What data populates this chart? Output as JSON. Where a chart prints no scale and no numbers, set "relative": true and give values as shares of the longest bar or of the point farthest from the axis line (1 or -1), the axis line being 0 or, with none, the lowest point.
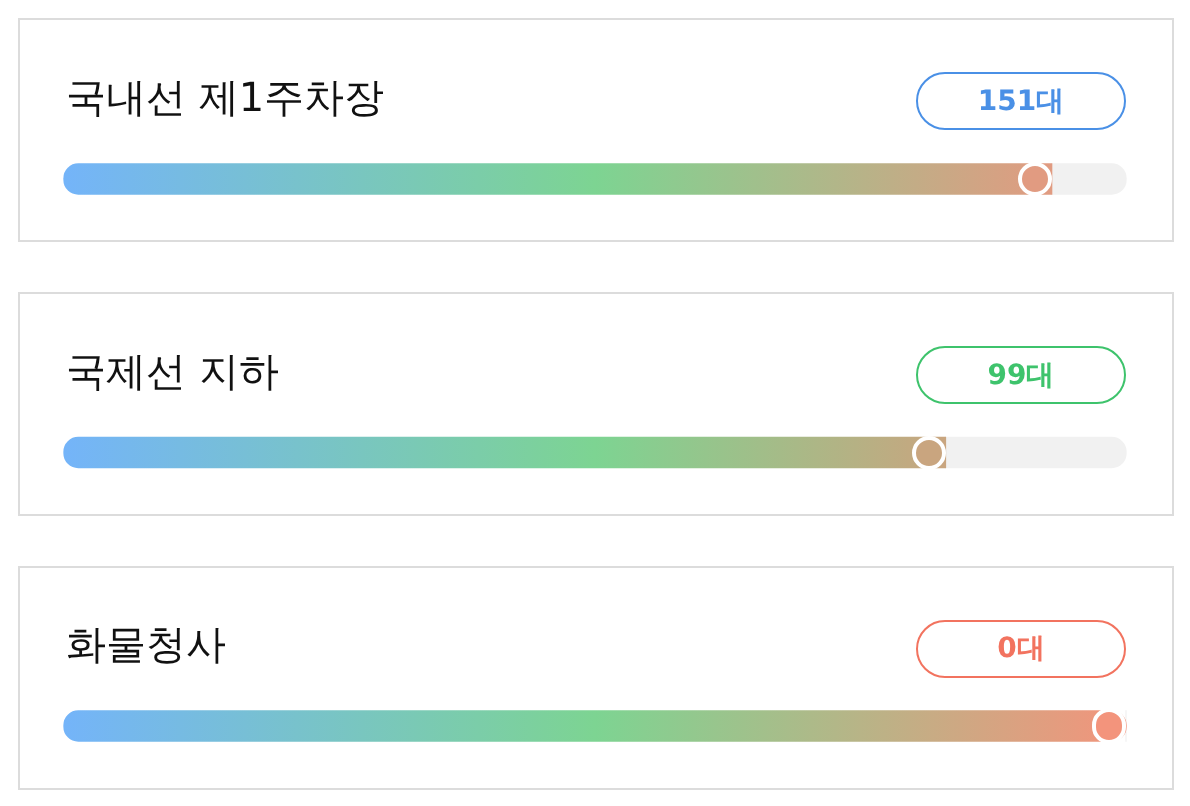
{
  "chart_data": {
    "type": "bar",
    "orientation": "horizontal",
    "relative": true,
    "stacked": true,
    "categories": [
      "국내선 제1주차장",
      "국제선 지하",
      "화물청사"
    ],
    "series": [
      {
        "colors": [
          "#e19b81",
          "#c9a57f",
          "#f3947c"
        ],
        "values": [
          0.93,
          0.83,
          1
        ]
      },
      {
        "color": "#f1f1f1",
        "values": [
          0.07,
          0.17,
          0
        ]
      }
    ],
    "annotations": [
      "151대",
      "99대",
      "0대"
    ]
  }
}
